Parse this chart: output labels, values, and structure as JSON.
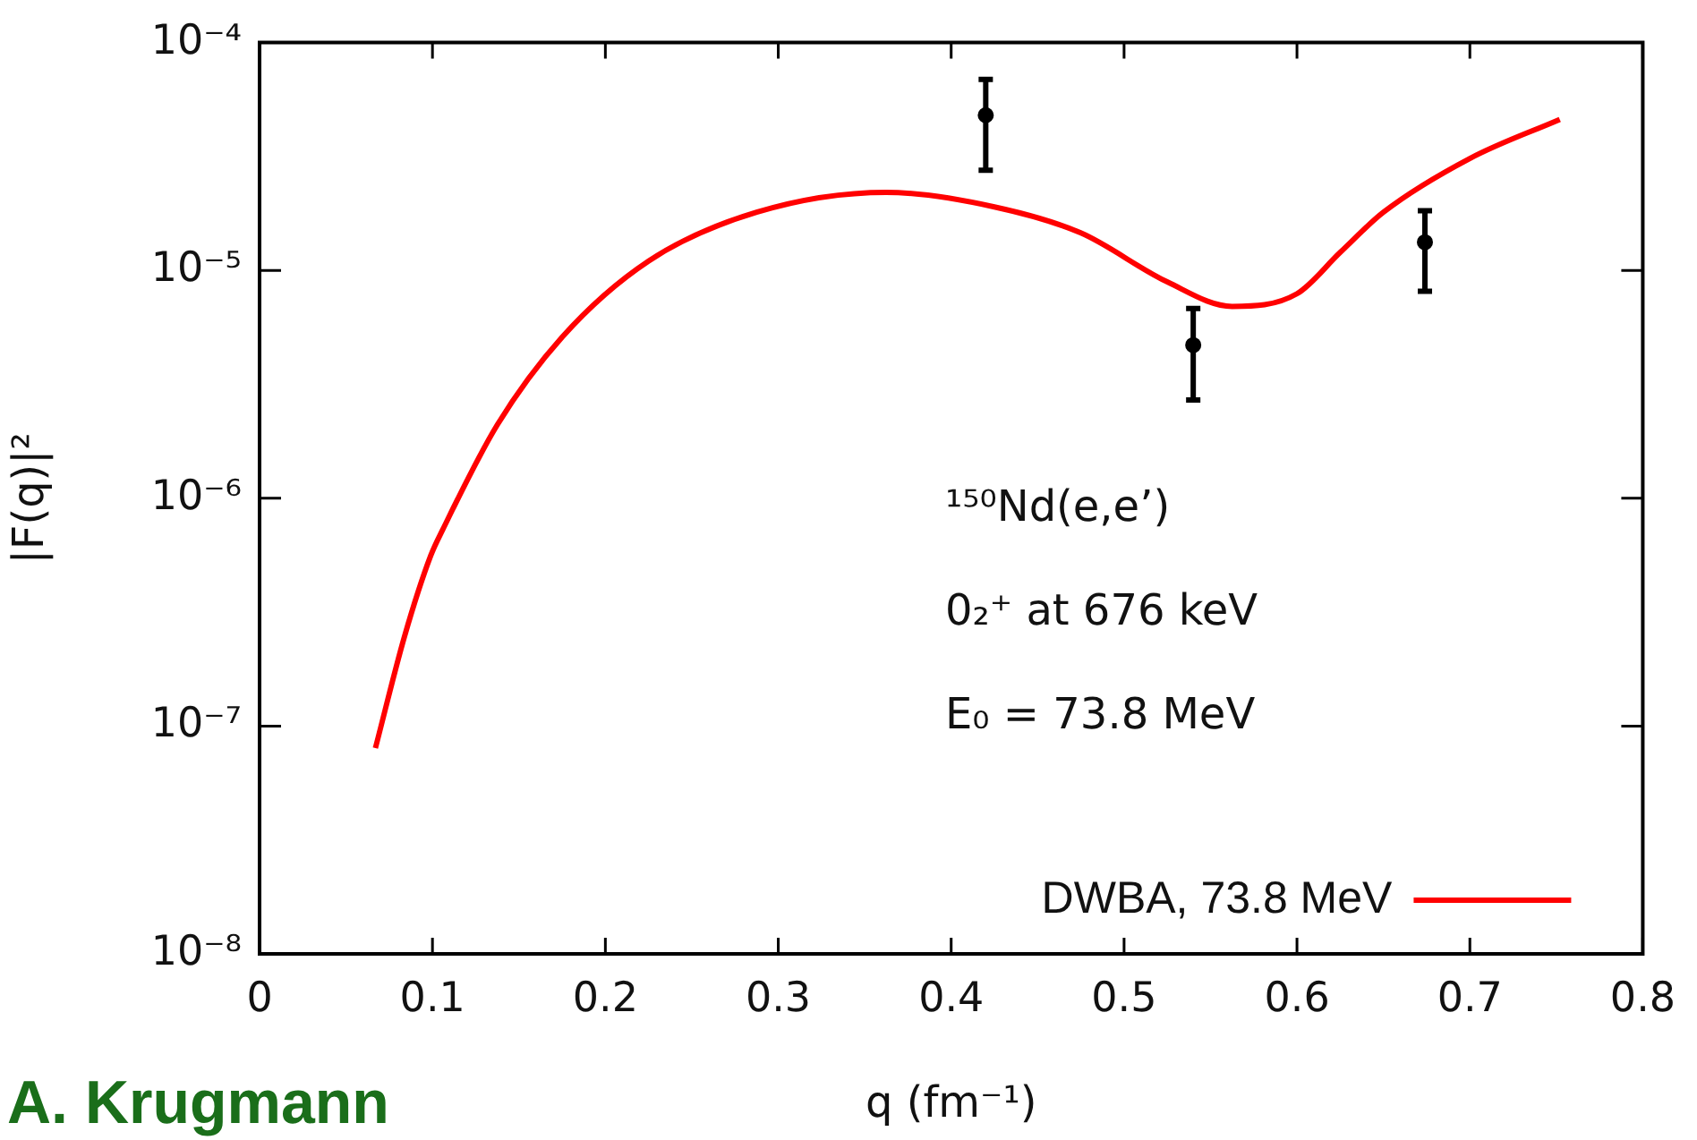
{
  "chart_data": {
    "type": "line",
    "xlabel": "q (fm⁻¹)",
    "ylabel": "|F(q)|²",
    "log": "y",
    "grid": false,
    "legend": "bottom right",
    "xlim": [
      0,
      0.8
    ],
    "xticks": [
      0,
      0.1,
      0.2,
      0.3,
      0.4,
      0.5,
      0.6,
      0.7,
      0.8
    ],
    "ylim": [
      1e-08,
      0.0001
    ],
    "yticks": [
      {
        "value": 1e-08,
        "label": "10⁻⁸"
      },
      {
        "value": 1e-07,
        "label": "10⁻⁷"
      },
      {
        "value": 1e-06,
        "label": "10⁻⁶"
      },
      {
        "value": 1e-05,
        "label": "10⁻⁵"
      },
      {
        "value": 0.0001,
        "label": "10⁻⁴"
      }
    ],
    "series": [
      {
        "name": "DWBA, 73.8 MeV",
        "color": "#ff0000",
        "marker": "none",
        "line_style": "solid",
        "x": [
          0.067,
          0.084,
          0.099,
          0.106,
          0.1375,
          0.175,
          0.225,
          0.2875,
          0.3625,
          0.425,
          0.475,
          0.525,
          0.5625,
          0.6,
          0.625,
          0.65,
          0.7,
          0.752
        ],
        "values": [
          8e-08,
          2.5e-07,
          5.6e-07,
          7.3e-07,
          2.1e-06,
          5.1e-06,
          1.1e-05,
          1.8e-05,
          2.2e-05,
          1.9e-05,
          1.46e-05,
          8.9e-06,
          6.95e-06,
          7.9e-06,
          1.2e-05,
          1.8e-05,
          3.1e-05,
          4.6e-05
        ]
      },
      {
        "type": "scatter",
        "color": "#000000",
        "marker": "circle",
        "x": [
          0.42,
          0.54,
          0.674
        ],
        "values": [
          4.8e-05,
          4.7e-06,
          1.33e-05
        ],
        "errors": [
          [
            2.75e-05,
            6.9e-05
          ],
          [
            2.7e-06,
            6.8e-06
          ],
          [
            8.1e-06,
            1.83e-05
          ]
        ]
      }
    ],
    "annotations": [
      "¹⁵⁰Nd(e,e’)",
      "0₂⁺ at 676 keV",
      "E₀ = 73.8 MeV",
      "A. Krugmann"
    ]
  }
}
